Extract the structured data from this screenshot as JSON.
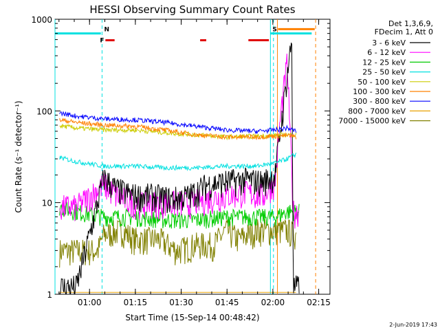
{
  "chart_data": {
    "type": "line",
    "title": "HESSI Observing Summary Count Rates",
    "xlabel": "Start Time (15-Sep-14 00:48:42)",
    "ylabel": "Count Rate (s⁻¹ detector⁻¹)",
    "yscale": "log",
    "ylim": [
      1,
      1000
    ],
    "xlim_minutes": [
      0,
      90
    ],
    "y_ticks": [
      "1",
      "10",
      "100",
      "1000"
    ],
    "x_ticks": [
      {
        "label": "01:00",
        "minute": 11.3
      },
      {
        "label": "01:15",
        "minute": 26.3
      },
      {
        "label": "01:30",
        "minute": 41.3
      },
      {
        "label": "01:45",
        "minute": 56.3
      },
      {
        "label": "02:00",
        "minute": 71.3
      },
      {
        "label": "02:15",
        "minute": 86.3
      }
    ],
    "legend_header": [
      "Det 1,3,6,9,",
      "FDecim 1, Att 0"
    ],
    "series": [
      {
        "name": "3 - 6 keV",
        "color": "#000000",
        "x": [
          1.5,
          7,
          16,
          20,
          26,
          32,
          38,
          44,
          50,
          56,
          62,
          68,
          72,
          74,
          76,
          77.5,
          78,
          80
        ],
        "y": [
          1.2,
          1.2,
          19,
          14,
          12,
          12,
          11,
          12,
          16,
          17,
          18,
          17,
          20,
          70,
          250,
          600,
          1.2,
          1.2
        ]
      },
      {
        "name": "6 - 12 keV",
        "color": "#ff00ff",
        "x": [
          1.5,
          7,
          16,
          20,
          26,
          32,
          38,
          44,
          50,
          56,
          62,
          68,
          72,
          74,
          76,
          78,
          80
        ],
        "y": [
          9,
          9,
          16,
          12,
          10,
          10,
          10,
          10,
          11,
          12,
          13,
          12,
          17,
          100,
          350,
          8,
          8
        ]
      },
      {
        "name": "12 - 25 keV",
        "color": "#00cc00",
        "x": [
          1.5,
          7,
          16,
          26,
          36,
          46,
          56,
          66,
          72,
          76,
          80
        ],
        "y": [
          9,
          8,
          7,
          7,
          6.5,
          6.5,
          7,
          7,
          7,
          8,
          8
        ]
      },
      {
        "name": "25 - 50 keV",
        "color": "#00e0e0",
        "x": [
          1.5,
          7,
          16,
          26,
          36,
          46,
          56,
          66,
          72,
          76,
          79
        ],
        "y": [
          31,
          28,
          25,
          25,
          24,
          24,
          25,
          25,
          27,
          30,
          34
        ]
      },
      {
        "name": "50 - 100 keV",
        "color": "#cccc00",
        "x": [
          1.5,
          7,
          16,
          26,
          36,
          46,
          56,
          66,
          72,
          76,
          79
        ],
        "y": [
          69,
          65,
          62,
          62,
          58,
          55,
          52,
          53,
          54,
          55,
          55
        ]
      },
      {
        "name": "100 - 300 keV",
        "color": "#ff8000",
        "x": [
          1.5,
          7,
          16,
          26,
          36,
          46,
          56,
          66,
          72,
          76,
          79
        ],
        "y": [
          80,
          75,
          70,
          68,
          62,
          55,
          52,
          52,
          53,
          54,
          52
        ]
      },
      {
        "name": "300 - 800 keV",
        "color": "#0000ff",
        "x": [
          1.5,
          7,
          16,
          26,
          36,
          46,
          56,
          66,
          72,
          76,
          79
        ],
        "y": [
          95,
          88,
          82,
          80,
          75,
          68,
          62,
          60,
          62,
          65,
          60
        ]
      },
      {
        "name": "800 - 7000 keV",
        "color": "#e8a000",
        "x": [
          1.5,
          79
        ],
        "y": [
          1.05,
          1.05
        ]
      },
      {
        "name": "7000 - 15000 keV",
        "color": "#808000",
        "x": [
          1.5,
          7,
          14,
          16,
          22,
          26,
          34,
          40,
          46,
          52,
          56,
          60,
          66,
          72,
          76,
          79
        ],
        "y": [
          3,
          3,
          3,
          4.5,
          5,
          4,
          4,
          3,
          3.5,
          3.5,
          5,
          4,
          5,
          5,
          5,
          4.5
        ]
      }
    ],
    "flag_bars": [
      {
        "label": "",
        "color": "#00e0e0",
        "x_start": 0,
        "x_end": 15,
        "y": 700
      },
      {
        "label": "N",
        "color": "#00e0e0",
        "x_start": 15.4,
        "x_end": 15.4,
        "y": 700
      },
      {
        "label": "F",
        "color": "#e00000",
        "x_start": 16.5,
        "x_end": 19.5,
        "y": 590
      },
      {
        "label": "",
        "color": "#e00000",
        "x_start": 47.5,
        "x_end": 49.5,
        "y": 590
      },
      {
        "label": "",
        "color": "#e00000",
        "x_start": 63.3,
        "x_end": 70,
        "y": 590
      },
      {
        "label": "S",
        "color": "#00e0e0",
        "x_start": 70.5,
        "x_end": 84,
        "y": 700
      },
      {
        "label": "",
        "color": "#ff8000",
        "x_start": 73,
        "x_end": 85,
        "y": 780
      }
    ],
    "vertical_markers": [
      {
        "color": "#00e0e0",
        "style": "solid",
        "minute": 0
      },
      {
        "color": "#00e0e0",
        "style": "dashed",
        "minute": 15.4
      },
      {
        "color": "#00e0e0",
        "style": "solid",
        "minute": 70.5
      },
      {
        "color": "#00e0e0",
        "style": "dashed",
        "minute": 71.5
      },
      {
        "color": "#ff8000",
        "style": "solid",
        "minute": 72.8
      },
      {
        "color": "#ff8000",
        "style": "dashed",
        "minute": 85.3
      }
    ],
    "footer_date": "2-Jun-2019 17:43"
  }
}
